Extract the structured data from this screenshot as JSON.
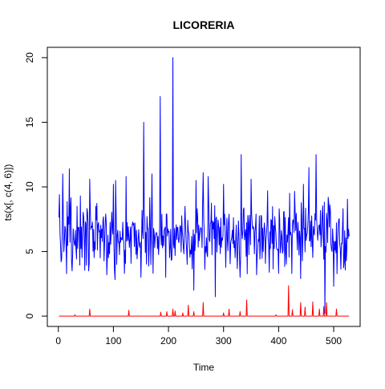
{
  "chart_data": {
    "type": "line",
    "title": "LICORERIA",
    "xlabel": "Time",
    "ylabel": "ts(x[, c(4, 6)])",
    "xlim": [
      -20,
      548
    ],
    "ylim": [
      -0.8,
      20.8
    ],
    "x_ticks": [
      0,
      100,
      200,
      300,
      400,
      500
    ],
    "y_ticks": [
      0,
      5,
      10,
      15,
      20
    ],
    "grid": false,
    "legend": "none",
    "series": [
      {
        "color": "#0000ff",
        "peaks": [
          [
            2,
            9.4
          ],
          [
            8,
            11.0
          ],
          [
            20,
            11.4
          ],
          [
            40,
            9.3
          ],
          [
            57,
            10.6
          ],
          [
            100,
            10.2
          ],
          [
            104,
            10.5
          ],
          [
            123,
            10.8
          ],
          [
            155,
            15.0
          ],
          [
            170,
            11.0
          ],
          [
            185,
            17.0
          ],
          [
            208,
            20.0
          ],
          [
            250,
            10.5
          ],
          [
            263,
            11.1
          ],
          [
            272,
            10.8
          ],
          [
            300,
            10.2
          ],
          [
            332,
            12.5
          ],
          [
            350,
            10.6
          ],
          [
            380,
            9.7
          ],
          [
            420,
            9.5
          ],
          [
            445,
            10.2
          ],
          [
            455,
            11.5
          ],
          [
            468,
            12.5
          ],
          [
            490,
            9.2
          ]
        ],
        "troughs": [
          [
            5,
            4.2
          ],
          [
            25,
            3.5
          ],
          [
            55,
            3.5
          ],
          [
            88,
            3.2
          ],
          [
            120,
            3.3
          ],
          [
            150,
            3.0
          ],
          [
            195,
            3.0
          ],
          [
            246,
            2.0
          ],
          [
            285,
            1.5
          ],
          [
            330,
            3.0
          ],
          [
            360,
            3.2
          ],
          [
            400,
            3.3
          ],
          [
            440,
            2.9
          ],
          [
            484,
            0.2
          ],
          [
            500,
            2.3
          ]
        ]
      },
      {
        "color": "#ff0000",
        "spikes": [
          [
            30,
            0.1
          ],
          [
            57,
            0.55
          ],
          [
            128,
            0.45
          ],
          [
            186,
            0.3
          ],
          [
            197,
            0.35
          ],
          [
            208,
            0.55
          ],
          [
            212,
            0.4
          ],
          [
            226,
            0.25
          ],
          [
            236,
            0.85
          ],
          [
            246,
            0.35
          ],
          [
            263,
            1.05
          ],
          [
            300,
            0.25
          ],
          [
            310,
            0.55
          ],
          [
            330,
            0.35
          ],
          [
            342,
            1.25
          ],
          [
            395,
            0.1
          ],
          [
            418,
            2.35
          ],
          [
            425,
            0.5
          ],
          [
            440,
            1.05
          ],
          [
            448,
            0.7
          ],
          [
            462,
            1.1
          ],
          [
            474,
            0.55
          ],
          [
            482,
            0.75
          ],
          [
            487,
            1.05
          ],
          [
            505,
            0.55
          ]
        ]
      }
    ]
  }
}
